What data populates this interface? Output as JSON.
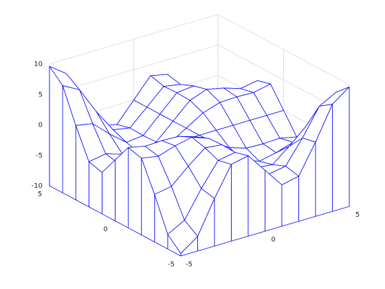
{
  "chart_data": {
    "type": "mesh",
    "color": "#0000ff",
    "curtain": true,
    "grid": true,
    "x": [
      -5,
      -4,
      -3,
      -2,
      -1,
      0,
      1,
      2,
      3,
      4,
      5
    ],
    "y": [
      -5,
      -4,
      -3,
      -2,
      -1,
      0,
      1,
      2,
      3,
      4,
      5
    ],
    "z": [
      [
        -9.6,
        -7.6,
        -2.2,
        2.6,
        3.2,
        0,
        -3.2,
        -2.6,
        2.2,
        7.6,
        9.6
      ],
      [
        -7.6,
        -6.1,
        -1.7,
        2.1,
        2.6,
        0,
        -2.6,
        -2.1,
        1.7,
        6.1,
        7.6
      ],
      [
        -2.2,
        -1.7,
        0.8,
        3.0,
        2.7,
        0,
        -2.7,
        -3.0,
        -0.8,
        1.7,
        2.2
      ],
      [
        2.6,
        2.1,
        3.0,
        3.6,
        2.6,
        0,
        -2.6,
        -3.6,
        -3.0,
        -2.1,
        -2.6
      ],
      [
        3.2,
        2.6,
        2.7,
        2.6,
        1.7,
        0,
        -1.7,
        -2.6,
        -2.7,
        -2.6,
        -3.2
      ],
      [
        0,
        0,
        0,
        0,
        0,
        0,
        0,
        0,
        0,
        0,
        0
      ],
      [
        -3.2,
        -2.6,
        -2.7,
        -2.6,
        -1.7,
        0,
        1.7,
        2.6,
        2.7,
        2.6,
        3.2
      ],
      [
        -2.6,
        -2.1,
        -3.0,
        -3.6,
        -2.6,
        0,
        2.6,
        3.6,
        3.0,
        2.1,
        2.6
      ],
      [
        2.2,
        1.7,
        -0.8,
        -3.0,
        -2.7,
        0,
        2.7,
        3.0,
        0.8,
        -1.7,
        -2.2
      ],
      [
        7.6,
        6.1,
        1.7,
        -2.1,
        -2.6,
        0,
        2.6,
        2.1,
        -1.7,
        -6.1,
        -7.6
      ],
      [
        9.6,
        7.6,
        2.2,
        -2.6,
        -3.2,
        0,
        3.2,
        2.6,
        -2.2,
        -7.6,
        -9.6
      ]
    ],
    "xlim": [
      -5,
      5
    ],
    "ylim": [
      -5,
      5
    ],
    "zlim": [
      -10,
      10
    ],
    "xticks": [
      -5,
      0,
      5
    ],
    "yticks": [
      -5,
      0,
      5
    ],
    "zticks": [
      -10,
      -5,
      0,
      5,
      10
    ]
  }
}
